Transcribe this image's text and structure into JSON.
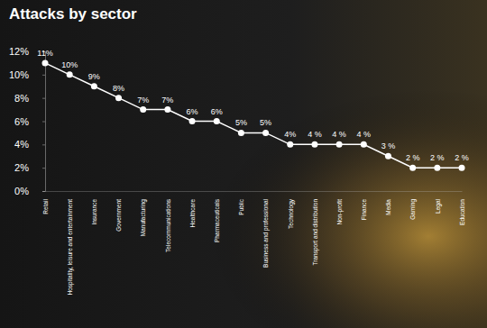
{
  "chart_data": {
    "type": "line",
    "title": "Attacks by sector",
    "categories": [
      "Retail",
      "Hospitality, leisure and entertainment",
      "Insurance",
      "Government",
      "Manufacturing",
      "Telecommunications",
      "Healthcare",
      "Pharmaceuticals",
      "Public",
      "Business and professional",
      "Technology",
      "Transport and distribution",
      "Non-profit",
      "Finance",
      "Media",
      "Gaming",
      "Legal",
      "Education"
    ],
    "values": [
      11,
      10,
      9,
      8,
      7,
      7,
      6,
      6,
      5,
      5,
      4,
      4,
      4,
      4,
      3,
      2,
      2,
      2
    ],
    "value_labels": [
      "11%",
      "10%",
      "9%",
      "8%",
      "7%",
      "7%",
      "6%",
      "6%",
      "5%",
      "5%",
      "4%",
      "4 %",
      "4 %",
      "4 %",
      "3 %",
      "2 %",
      "2 %",
      "2 %"
    ],
    "color": "#ffffff",
    "marker": "circle",
    "data_labels": true,
    "grid": false,
    "ylim": [
      0,
      12
    ],
    "yticks": [
      {
        "value": 0,
        "label": "0%"
      },
      {
        "value": 2,
        "label": "2%"
      },
      {
        "value": 4,
        "label": "4%"
      },
      {
        "value": 6,
        "label": "6%"
      },
      {
        "value": 8,
        "label": "8%"
      },
      {
        "value": 10,
        "label": "10%"
      },
      {
        "value": 12,
        "label": "12%"
      }
    ]
  }
}
